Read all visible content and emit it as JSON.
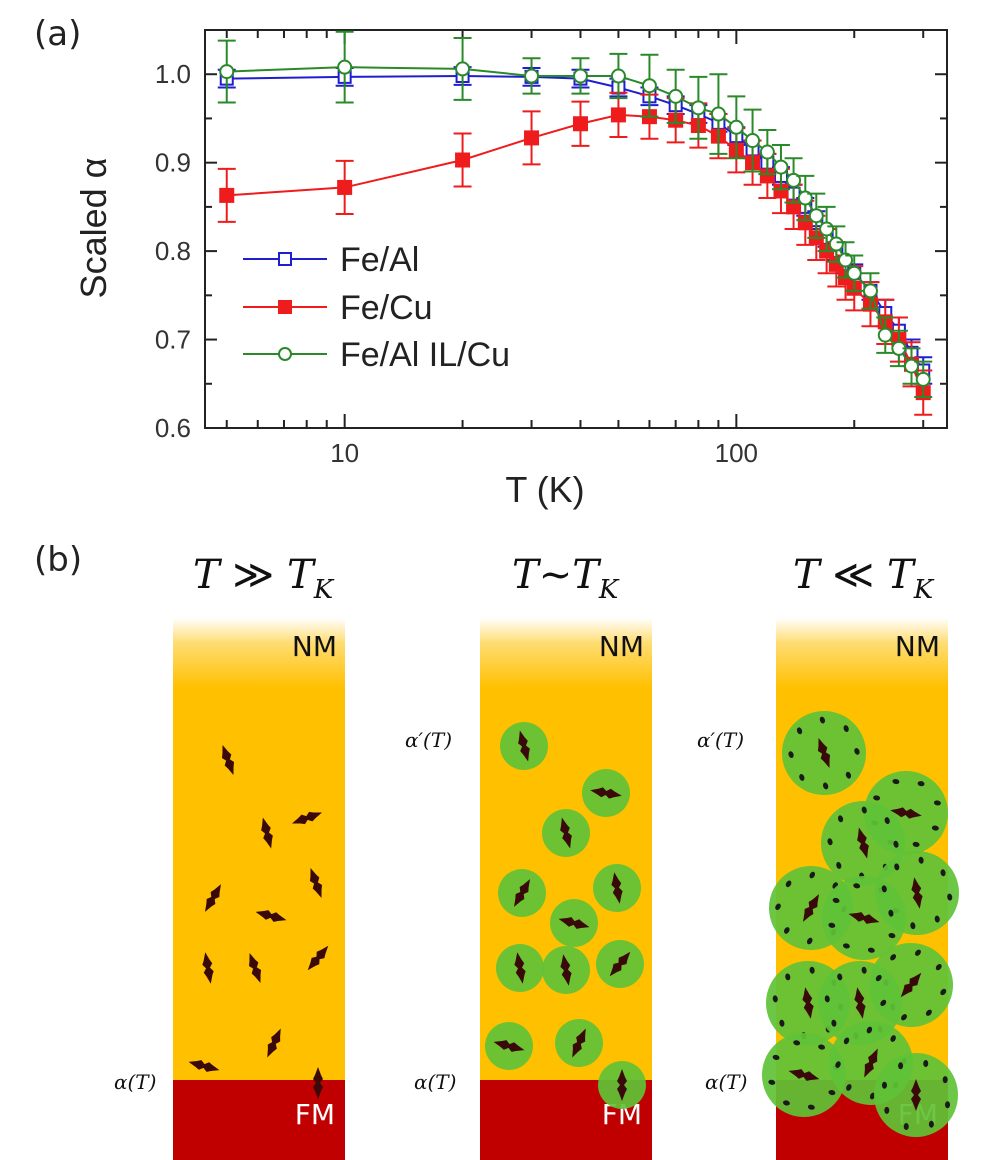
{
  "chart_data": {
    "type": "scatter",
    "panel_label": "(a)",
    "title": "",
    "xlabel": "T (K)",
    "ylabel": "Scaled α",
    "xscale": "log",
    "xlim": [
      4.4,
      345
    ],
    "ylim": [
      0.6,
      1.05
    ],
    "x_ticks": [
      10,
      100
    ],
    "x_tick_labels": [
      "10",
      "100"
    ],
    "y_ticks": [
      0.6,
      0.7,
      0.8,
      0.9,
      1.0
    ],
    "y_tick_labels": [
      "0.6",
      "0.7",
      "0.8",
      "0.9",
      "1.0"
    ],
    "grid": false,
    "legend_position": "lower-left",
    "series": [
      {
        "name": "Fe/Al",
        "color": "#1f1fd0",
        "marker": "open-square",
        "x": [
          5,
          10,
          20,
          30,
          40,
          50,
          60,
          70,
          80,
          90,
          100,
          110,
          120,
          130,
          140,
          150,
          160,
          170,
          180,
          190,
          200,
          220,
          240,
          260,
          280,
          300
        ],
        "y": [
          0.995,
          0.997,
          0.998,
          0.997,
          0.995,
          0.985,
          0.975,
          0.965,
          0.955,
          0.945,
          0.93,
          0.915,
          0.9,
          0.885,
          0.865,
          0.85,
          0.835,
          0.815,
          0.8,
          0.785,
          0.775,
          0.755,
          0.73,
          0.71,
          0.685,
          0.665
        ],
        "err": [
          0.01,
          0.01,
          0.01,
          0.01,
          0.01,
          0.01,
          0.01,
          0.01,
          0.01,
          0.01,
          0.01,
          0.01,
          0.01,
          0.01,
          0.01,
          0.01,
          0.01,
          0.01,
          0.01,
          0.01,
          0.01,
          0.01,
          0.015,
          0.015,
          0.015,
          0.015
        ]
      },
      {
        "name": "Fe/Cu",
        "color": "#ee1c1c",
        "marker": "filled-square",
        "x": [
          5,
          10,
          20,
          30,
          40,
          50,
          60,
          70,
          80,
          90,
          100,
          110,
          120,
          130,
          140,
          150,
          160,
          170,
          180,
          190,
          200,
          220,
          240,
          260,
          280,
          300
        ],
        "y": [
          0.863,
          0.872,
          0.903,
          0.928,
          0.944,
          0.954,
          0.952,
          0.948,
          0.942,
          0.93,
          0.914,
          0.9,
          0.885,
          0.868,
          0.85,
          0.832,
          0.815,
          0.8,
          0.785,
          0.77,
          0.758,
          0.74,
          0.72,
          0.7,
          0.672,
          0.64
        ],
        "err": [
          0.03,
          0.03,
          0.03,
          0.03,
          0.025,
          0.025,
          0.025,
          0.025,
          0.025,
          0.025,
          0.025,
          0.025,
          0.025,
          0.025,
          0.025,
          0.025,
          0.025,
          0.025,
          0.025,
          0.025,
          0.025,
          0.025,
          0.025,
          0.025,
          0.025,
          0.025
        ]
      },
      {
        "name": "Fe/Al IL/Cu",
        "color": "#2a8a2a",
        "marker": "open-circle",
        "x": [
          5,
          10,
          20,
          30,
          40,
          50,
          60,
          70,
          80,
          90,
          100,
          110,
          120,
          130,
          140,
          150,
          160,
          170,
          180,
          190,
          200,
          220,
          240,
          260,
          280,
          300
        ],
        "y": [
          1.003,
          1.008,
          1.006,
          0.998,
          0.998,
          0.998,
          0.987,
          0.975,
          0.962,
          0.955,
          0.94,
          0.925,
          0.912,
          0.895,
          0.88,
          0.86,
          0.84,
          0.825,
          0.808,
          0.79,
          0.775,
          0.755,
          0.705,
          0.69,
          0.67,
          0.655
        ],
        "err": [
          0.035,
          0.04,
          0.035,
          0.02,
          0.02,
          0.025,
          0.035,
          0.03,
          0.035,
          0.045,
          0.035,
          0.035,
          0.025,
          0.025,
          0.025,
          0.025,
          0.025,
          0.025,
          0.02,
          0.02,
          0.02,
          0.02,
          0.02,
          0.02,
          0.02,
          0.02
        ]
      }
    ]
  },
  "schematic": {
    "panel_label": "(b)",
    "columns": [
      {
        "title_T": "T",
        "title_rel": "≫",
        "title_TK": "T",
        "title_TK_sub": "K",
        "nm_label": "NM",
        "fm_label": "FM",
        "alpha_prime_label": "",
        "alpha_label": "α(T)",
        "cloud_style": "none"
      },
      {
        "title_T": "T",
        "title_rel": "~",
        "title_TK": "T",
        "title_TK_sub": "K",
        "nm_label": "NM",
        "fm_label": "FM",
        "alpha_prime_label": "α′(T)",
        "alpha_label": "α(T)",
        "cloud_style": "small"
      },
      {
        "title_T": "T",
        "title_rel": "≪",
        "title_TK": "T",
        "title_TK_sub": "K",
        "nm_label": "NM",
        "fm_label": "FM",
        "alpha_prime_label": "α′(T)",
        "alpha_label": "α(T)",
        "cloud_style": "large"
      }
    ],
    "colors": {
      "nm": "#ffc000",
      "fm": "#c00000",
      "spin": "#3a0a0a",
      "cloud": "#5fc236"
    }
  }
}
